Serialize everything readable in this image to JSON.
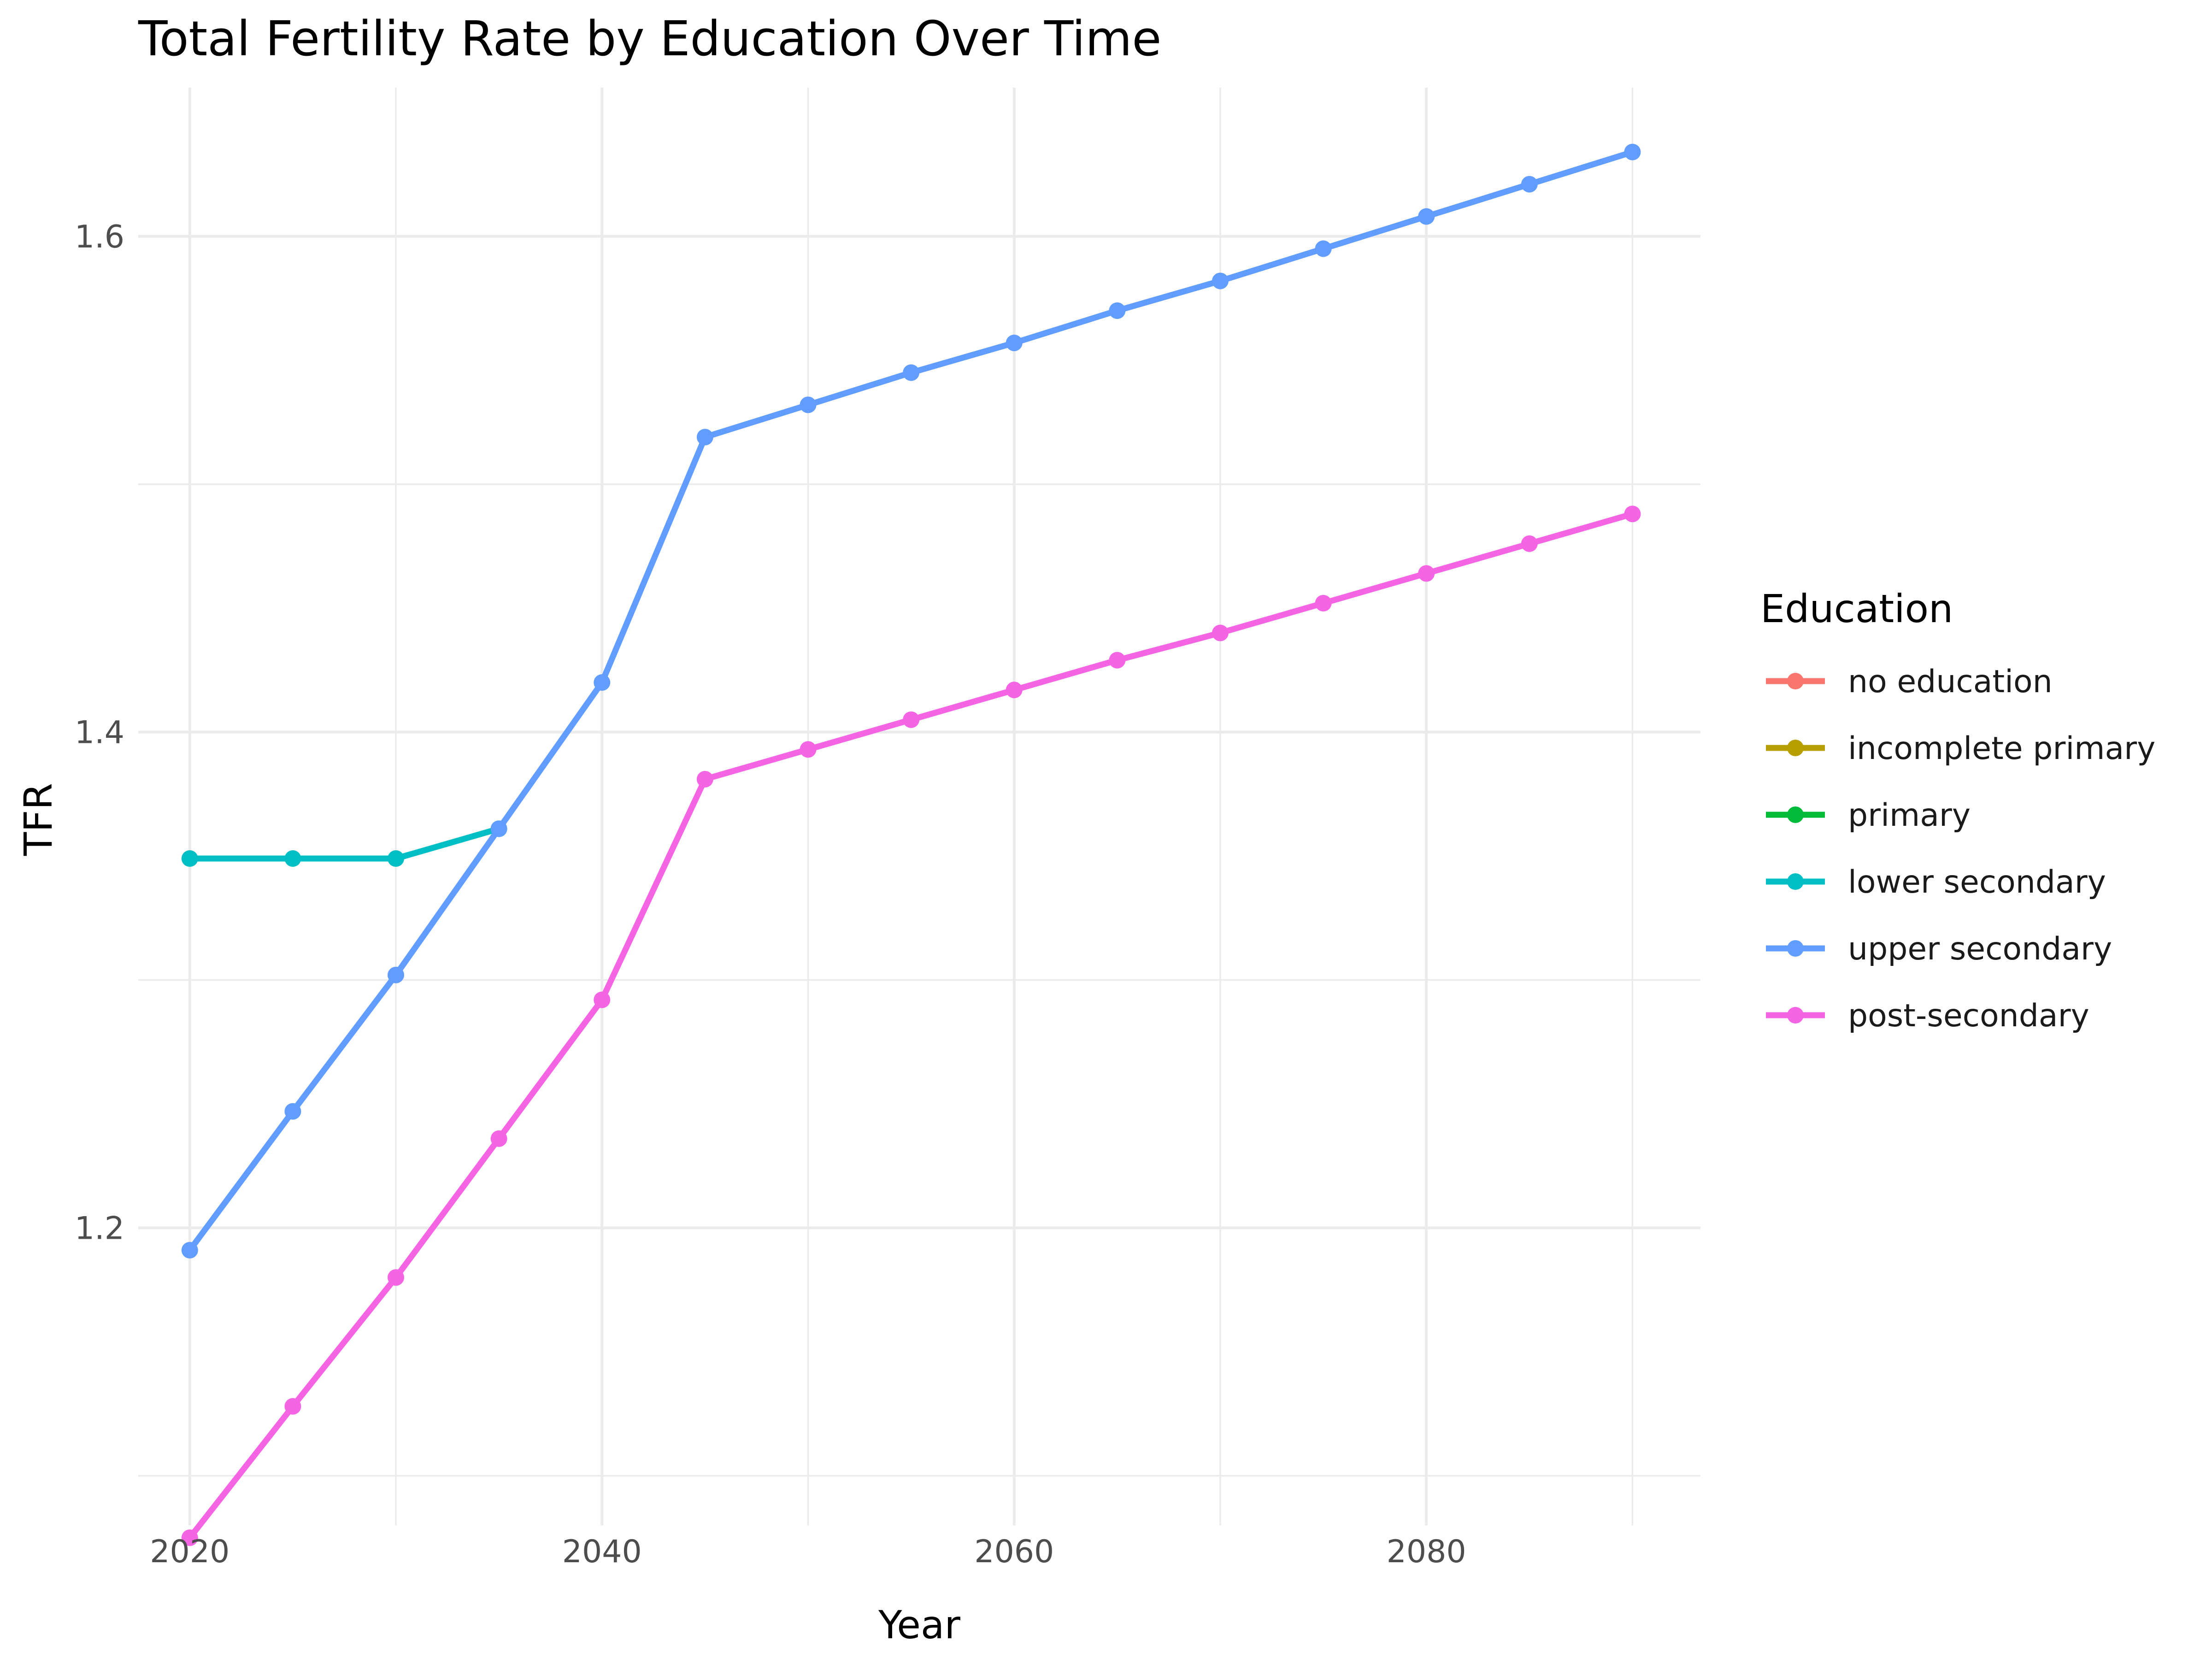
{
  "chart_data": {
    "type": "line",
    "title": "Total Fertility Rate by Education Over Time",
    "xlabel": "Year",
    "ylabel": "TFR",
    "xlim": [
      2017.5,
      2093.3
    ],
    "ylim": [
      1.08,
      1.66
    ],
    "x_ticks": [
      2020,
      2040,
      2060,
      2080
    ],
    "x_tick_labels": [
      "2020",
      "2040",
      "2060",
      "2080"
    ],
    "x_minor_ticks": [
      2030,
      2050,
      2070,
      2090
    ],
    "y_ticks": [
      1.2,
      1.4,
      1.6
    ],
    "y_tick_labels": [
      "1.2",
      "1.4",
      "1.6"
    ],
    "y_minor_ticks": [
      1.1,
      1.3,
      1.5
    ],
    "grid": true,
    "legend": {
      "title": "Education",
      "placement": "right",
      "entries": [
        {
          "name": "no education",
          "color": "#F8766D"
        },
        {
          "name": "incomplete primary",
          "color": "#B79F00"
        },
        {
          "name": "primary",
          "color": "#00BA38"
        },
        {
          "name": "lower secondary",
          "color": "#00BFC4"
        },
        {
          "name": "upper secondary",
          "color": "#619CFF"
        },
        {
          "name": "post-secondary",
          "color": "#F564E3"
        }
      ]
    },
    "series": [
      {
        "name": "lower secondary",
        "color": "#00BFC4",
        "x": [
          2020,
          2025,
          2030,
          2035
        ],
        "y": [
          1.349,
          1.349,
          1.349,
          1.361
        ]
      },
      {
        "name": "upper secondary",
        "color": "#619CFF",
        "x": [
          2020,
          2025,
          2030,
          2035,
          2040,
          2045,
          2050,
          2055,
          2060,
          2065,
          2070,
          2075,
          2080,
          2085,
          2090
        ],
        "y": [
          1.191,
          1.247,
          1.302,
          1.361,
          1.42,
          1.519,
          1.532,
          1.545,
          1.557,
          1.57,
          1.582,
          1.595,
          1.608,
          1.621,
          1.634
        ]
      },
      {
        "name": "post-secondary",
        "color": "#F564E3",
        "x": [
          2020,
          2025,
          2030,
          2035,
          2040,
          2045,
          2050,
          2055,
          2060,
          2065,
          2070,
          2075,
          2080,
          2085,
          2090
        ],
        "y": [
          1.075,
          1.128,
          1.18,
          1.236,
          1.292,
          1.381,
          1.393,
          1.405,
          1.417,
          1.429,
          1.44,
          1.452,
          1.464,
          1.476,
          1.488
        ]
      }
    ]
  }
}
